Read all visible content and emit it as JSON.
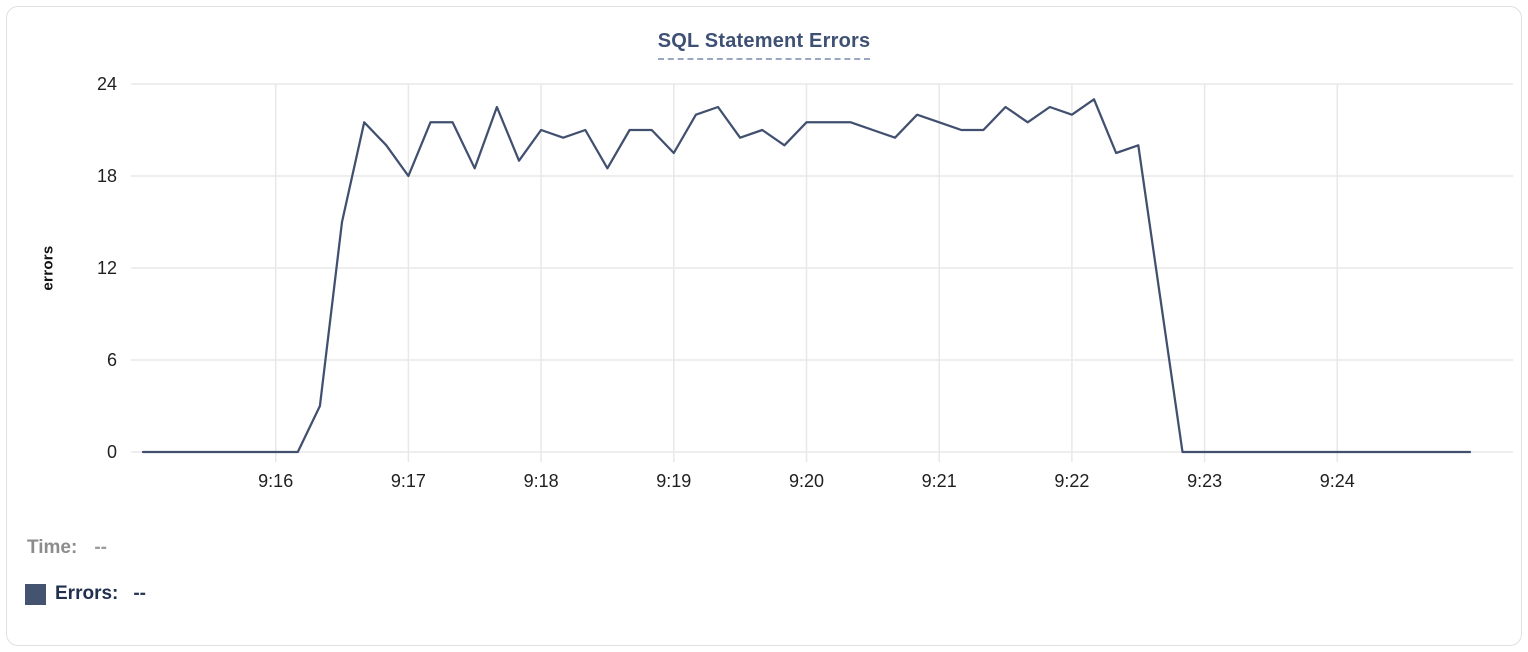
{
  "chart_card": {
    "title": "SQL Statement Errors"
  },
  "tooltip": {
    "time_label": "Time:",
    "time_value": "--",
    "errors_label": "Errors:",
    "errors_value": "--"
  },
  "colors": {
    "line": "#41506f",
    "legend_swatch": "#44536f",
    "grid": "#e8e8e8",
    "title_text": "#3e5174",
    "title_underline": "#9aa6c2",
    "axis_text": "#1f1f1f",
    "muted_text": "#8c8c8c"
  },
  "chart_data": {
    "type": "line",
    "title": "SQL Statement Errors",
    "xlabel": "",
    "ylabel": "errors",
    "ylim": [
      0,
      24
    ],
    "yticks": [
      0,
      6,
      12,
      18,
      24
    ],
    "xticks": [
      "9:16",
      "9:17",
      "9:18",
      "9:19",
      "9:20",
      "9:21",
      "9:22",
      "9:23",
      "9:24"
    ],
    "x_start": "9:15:00",
    "x_end": "9:25:00",
    "grid": true,
    "legend_position": "bottom-left",
    "series": [
      {
        "name": "Errors",
        "points": [
          [
            "9:15:00",
            0
          ],
          [
            "9:15:10",
            0
          ],
          [
            "9:15:20",
            0
          ],
          [
            "9:15:30",
            0
          ],
          [
            "9:15:40",
            0
          ],
          [
            "9:15:50",
            0
          ],
          [
            "9:16:00",
            0
          ],
          [
            "9:16:10",
            0
          ],
          [
            "9:16:20",
            3
          ],
          [
            "9:16:30",
            15
          ],
          [
            "9:16:40",
            21.5
          ],
          [
            "9:16:50",
            20
          ],
          [
            "9:17:00",
            18
          ],
          [
            "9:17:10",
            21.5
          ],
          [
            "9:17:20",
            21.5
          ],
          [
            "9:17:30",
            18.5
          ],
          [
            "9:17:40",
            22.5
          ],
          [
            "9:17:50",
            19
          ],
          [
            "9:18:00",
            21
          ],
          [
            "9:18:10",
            20.5
          ],
          [
            "9:18:20",
            21
          ],
          [
            "9:18:30",
            18.5
          ],
          [
            "9:18:40",
            21
          ],
          [
            "9:18:50",
            21
          ],
          [
            "9:19:00",
            19.5
          ],
          [
            "9:19:10",
            22
          ],
          [
            "9:19:20",
            22.5
          ],
          [
            "9:19:30",
            20.5
          ],
          [
            "9:19:40",
            21
          ],
          [
            "9:19:50",
            20
          ],
          [
            "9:20:00",
            21.5
          ],
          [
            "9:20:10",
            21.5
          ],
          [
            "9:20:20",
            21.5
          ],
          [
            "9:20:30",
            21
          ],
          [
            "9:20:40",
            20.5
          ],
          [
            "9:20:50",
            22
          ],
          [
            "9:21:00",
            21.5
          ],
          [
            "9:21:10",
            21
          ],
          [
            "9:21:20",
            21
          ],
          [
            "9:21:30",
            22.5
          ],
          [
            "9:21:40",
            21.5
          ],
          [
            "9:21:50",
            22.5
          ],
          [
            "9:22:00",
            22
          ],
          [
            "9:22:10",
            23
          ],
          [
            "9:22:20",
            19.5
          ],
          [
            "9:22:30",
            20
          ],
          [
            "9:22:40",
            10
          ],
          [
            "9:22:50",
            0
          ],
          [
            "9:23:00",
            0
          ],
          [
            "9:23:10",
            0
          ],
          [
            "9:23:20",
            0
          ],
          [
            "9:23:30",
            0
          ],
          [
            "9:23:40",
            0
          ],
          [
            "9:23:50",
            0
          ],
          [
            "9:24:00",
            0
          ],
          [
            "9:24:10",
            0
          ],
          [
            "9:24:20",
            0
          ],
          [
            "9:24:30",
            0
          ],
          [
            "9:24:40",
            0
          ],
          [
            "9:24:50",
            0
          ],
          [
            "9:25:00",
            0
          ]
        ]
      }
    ]
  }
}
